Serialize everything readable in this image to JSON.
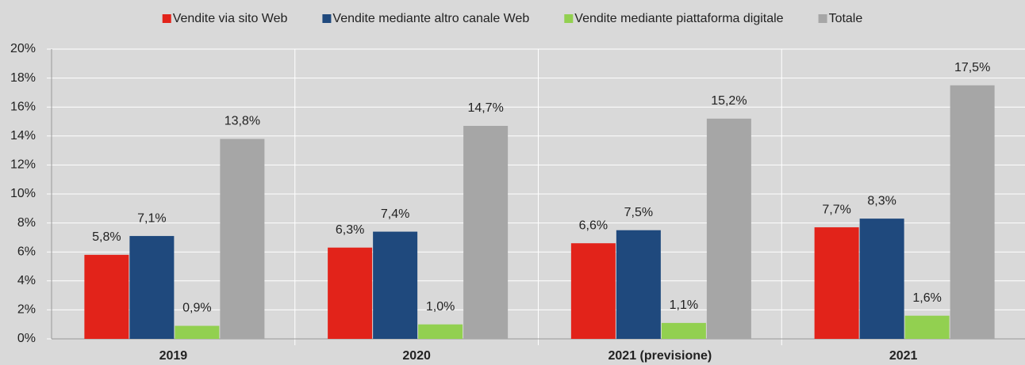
{
  "chart_data": {
    "type": "bar",
    "categories": [
      "2019",
      "2020",
      "2021 (previsione)",
      "2021"
    ],
    "series": [
      {
        "name": "Vendite via sito Web",
        "color": "#e2231a",
        "values": [
          5.8,
          6.3,
          6.6,
          7.7
        ],
        "value_labels": [
          "5,8%",
          "6,3%",
          "6,6%",
          "7,7%"
        ]
      },
      {
        "name": "Vendite mediante altro canale Web",
        "color": "#1f497d",
        "values": [
          7.1,
          7.4,
          7.5,
          8.3
        ],
        "value_labels": [
          "7,1%",
          "7,4%",
          "7,5%",
          "8,3%"
        ]
      },
      {
        "name": "Vendite mediante piattaforma digitale",
        "color": "#92d050",
        "values": [
          0.9,
          1.0,
          1.1,
          1.6
        ],
        "value_labels": [
          "0,9%",
          "1,0%",
          "1,1%",
          "1,6%"
        ]
      },
      {
        "name": "Totale",
        "color": "#a6a6a6",
        "values": [
          13.8,
          14.7,
          15.2,
          17.5
        ],
        "value_labels": [
          "13,8%",
          "14,7%",
          "15,2%",
          "17,5%"
        ]
      }
    ],
    "ylim": [
      0,
      20
    ],
    "yticks": [
      {
        "value": 0,
        "label": "0%"
      },
      {
        "value": 2,
        "label": "2%"
      },
      {
        "value": 4,
        "label": "4%"
      },
      {
        "value": 6,
        "label": "6%"
      },
      {
        "value": 8,
        "label": "8%"
      },
      {
        "value": 10,
        "label": "10%"
      },
      {
        "value": 12,
        "label": "12%"
      },
      {
        "value": 14,
        "label": "14%"
      },
      {
        "value": 16,
        "label": "16%"
      },
      {
        "value": 18,
        "label": "18%"
      },
      {
        "value": 20,
        "label": "20%"
      }
    ],
    "grid": true,
    "legend": "top"
  }
}
